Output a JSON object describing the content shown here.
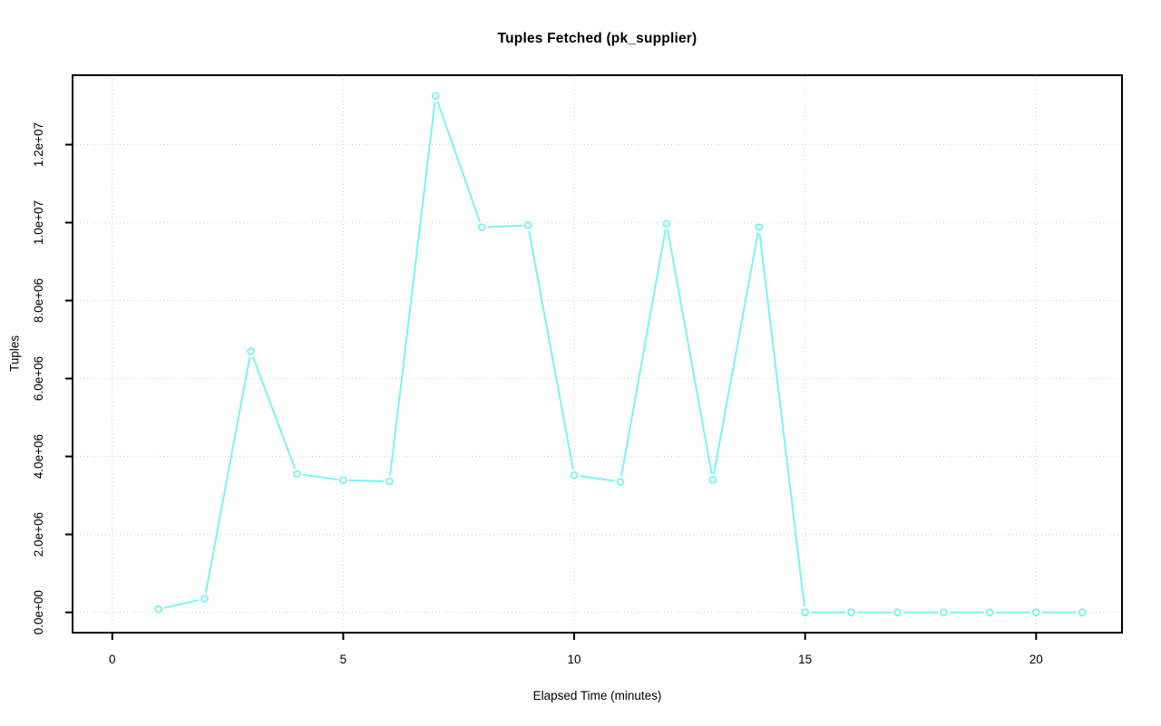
{
  "chart_data": {
    "type": "line",
    "title": "Tuples Fetched (pk_supplier)",
    "xlabel": "Elapsed Time (minutes)",
    "ylabel": "Tuples",
    "series": [
      {
        "name": "pk_supplier",
        "x": [
          1,
          2,
          3,
          4,
          5,
          6,
          7,
          8,
          9,
          10,
          11,
          12,
          13,
          14,
          15,
          16,
          17,
          18,
          19,
          20,
          21
        ],
        "values": [
          80000,
          350000,
          6700000,
          3550000,
          3390000,
          3360000,
          13250000,
          9880000,
          9930000,
          3520000,
          3350000,
          9970000,
          3400000,
          9880000,
          0,
          0,
          0,
          0,
          0,
          0,
          0
        ]
      }
    ],
    "xlim": [
      -0.86,
      21.86
    ],
    "ylim": [
      -520000,
      13780000
    ],
    "x_ticks": [
      {
        "value": 0,
        "label": "0"
      },
      {
        "value": 5,
        "label": "5"
      },
      {
        "value": 10,
        "label": "10"
      },
      {
        "value": 15,
        "label": "15"
      },
      {
        "value": 20,
        "label": "20"
      }
    ],
    "y_ticks": [
      {
        "value": 0,
        "label": "0.0e+00"
      },
      {
        "value": 2000000,
        "label": "2.0e+06"
      },
      {
        "value": 4000000,
        "label": "4.0e+06"
      },
      {
        "value": 6000000,
        "label": "6.0e+06"
      },
      {
        "value": 8000000,
        "label": "8.0e+06"
      },
      {
        "value": 10000000,
        "label": "1.0e+07"
      },
      {
        "value": 12000000,
        "label": "1.2e+07"
      }
    ],
    "grid": true,
    "legend": "none",
    "marker": "open-circle",
    "line_color": "#7df2f2",
    "grid_color": "#d6d6d6",
    "axis_color": "#000000",
    "background_color": "#ffffff"
  }
}
